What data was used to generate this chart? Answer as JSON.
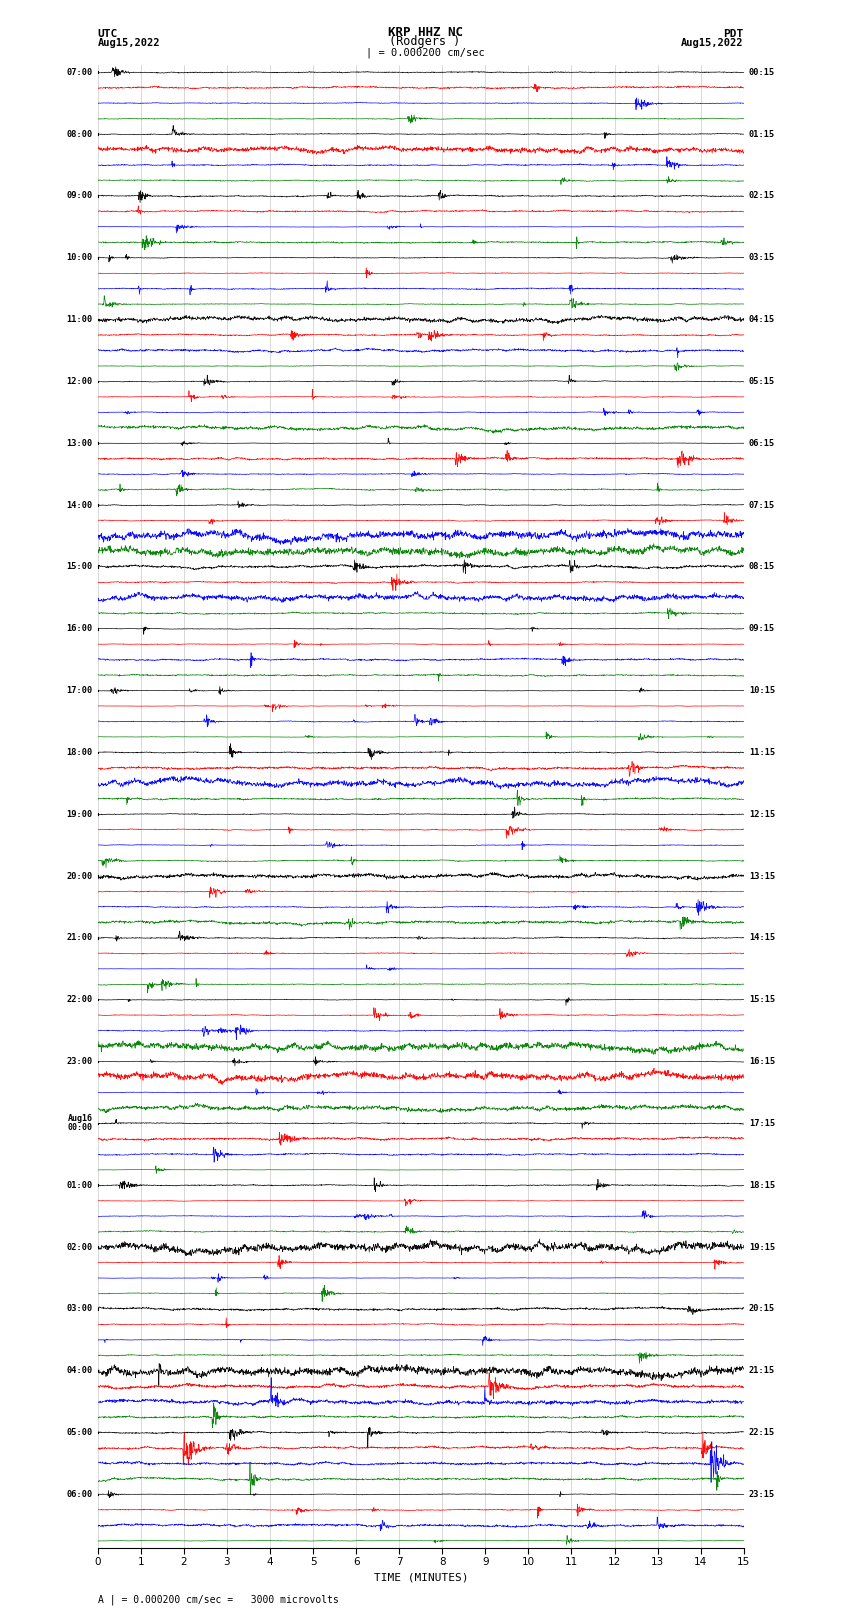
{
  "title_line1": "KRP HHZ NC",
  "title_line2": "(Rodgers )",
  "scale_text": "| = 0.000200 cm/sec",
  "footer_text": "A | = 0.000200 cm/sec =   3000 microvolts",
  "xlabel": "TIME (MINUTES)",
  "left_header": [
    "UTC",
    "Aug15,2022"
  ],
  "right_header": [
    "PDT",
    "Aug15,2022"
  ],
  "utc_times": [
    "07:00",
    "08:00",
    "09:00",
    "10:00",
    "11:00",
    "12:00",
    "13:00",
    "14:00",
    "15:00",
    "16:00",
    "17:00",
    "18:00",
    "19:00",
    "20:00",
    "21:00",
    "22:00",
    "23:00",
    "Aug16\n00:00",
    "01:00",
    "02:00",
    "03:00",
    "04:00",
    "05:00",
    "06:00"
  ],
  "pdt_times": [
    "00:15",
    "01:15",
    "02:15",
    "03:15",
    "04:15",
    "05:15",
    "06:15",
    "07:15",
    "08:15",
    "09:15",
    "10:15",
    "11:15",
    "12:15",
    "13:15",
    "14:15",
    "15:15",
    "16:15",
    "17:15",
    "18:15",
    "19:15",
    "20:15",
    "21:15",
    "22:15",
    "23:15"
  ],
  "colors": [
    "black",
    "red",
    "blue",
    "green"
  ],
  "n_hours": 24,
  "traces_per_hour": 4,
  "n_points": 1800,
  "x_min": 0,
  "x_max": 15,
  "bg_color": "white",
  "amp_base": 0.42,
  "grid_color": "#aaaaaa",
  "grid_lw": 0.4
}
